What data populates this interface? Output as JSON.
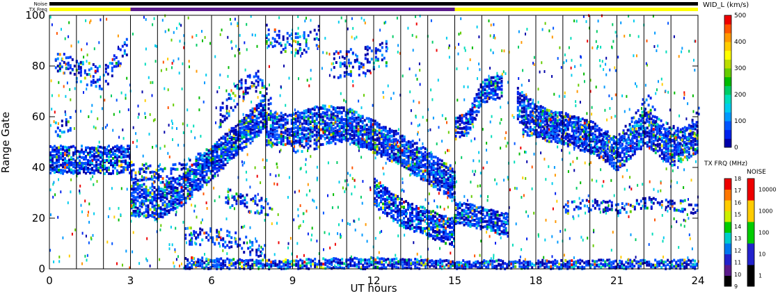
{
  "chart_data": {
    "type": "heatmap",
    "title": "",
    "xlabel": "UT hours",
    "ylabel": "Range Gate",
    "xlim": [
      0,
      24
    ],
    "ylim": [
      0,
      100
    ],
    "x_ticks": [
      "0",
      "3",
      "6",
      "9",
      "12",
      "15",
      "18",
      "21",
      "24"
    ],
    "y_ticks": [
      "0",
      "20",
      "40",
      "60",
      "80",
      "100"
    ],
    "vertical_hour_lines": [
      1,
      2,
      3,
      4,
      5,
      6,
      7,
      8,
      9,
      10,
      11,
      12,
      13,
      14,
      15,
      16,
      17,
      18,
      19,
      20,
      21,
      22,
      23
    ],
    "status_bars": {
      "noise_label": "Noise",
      "txfreq_label": "TX Freq",
      "noise_color": "#000000",
      "txfreq_segments": [
        {
          "start": 0,
          "end": 3,
          "color": "#ffff00"
        },
        {
          "start": 3,
          "end": 15,
          "color": "#5a1a8a"
        },
        {
          "start": 15,
          "end": 24,
          "color": "#ffff00"
        }
      ]
    },
    "bands": [
      {
        "x": [
          0,
          3
        ],
        "y0": [
          43,
          43
        ],
        "width": 5
      },
      {
        "x": [
          0.2,
          1,
          2,
          2.9
        ],
        "y0": [
          82,
          78,
          75,
          90
        ],
        "width": 4,
        "sparse": true
      },
      {
        "x": [
          0.2,
          0.8
        ],
        "y0": [
          55,
          57
        ],
        "width": 3,
        "sparse": true
      },
      {
        "x": [
          3,
          4,
          5,
          6,
          7,
          8
        ],
        "y0": [
          27,
          26,
          32,
          42,
          52,
          62
        ],
        "width": 6
      },
      {
        "x": [
          3,
          4,
          5,
          6,
          7,
          8
        ],
        "y0": [
          38,
          36,
          38,
          44,
          50,
          60
        ],
        "width": 4,
        "sparse": true
      },
      {
        "x": [
          6.3,
          7,
          7.7,
          8.2
        ],
        "y0": [
          60,
          70,
          75,
          62
        ],
        "width": 4,
        "sparse": true
      },
      {
        "x": [
          6.5,
          8.2
        ],
        "y0": [
          28,
          24
        ],
        "width": 3,
        "sparse": true
      },
      {
        "x": [
          8,
          9,
          10,
          11,
          12,
          13,
          14,
          15
        ],
        "y0": [
          55,
          55,
          58,
          57,
          52,
          47,
          40,
          33
        ],
        "width": 6
      },
      {
        "x": [
          9,
          10,
          11,
          12,
          13,
          14,
          15
        ],
        "y0": [
          50,
          52,
          55,
          50,
          45,
          38,
          30
        ],
        "width": 4,
        "sparse": true
      },
      {
        "x": [
          12,
          13,
          14,
          15
        ],
        "y0": [
          30,
          22,
          18,
          14
        ],
        "width": 5
      },
      {
        "x": [
          8,
          9,
          10
        ],
        "y0": [
          92,
          88,
          92
        ],
        "width": 4,
        "sparse": true
      },
      {
        "x": [
          10.5,
          11.5,
          12.5
        ],
        "y0": [
          80,
          82,
          85
        ],
        "width": 5,
        "sparse": true
      },
      {
        "x": [
          15,
          15.5,
          16,
          16.7
        ],
        "y0": [
          55,
          58,
          70,
          72
        ],
        "width": 4
      },
      {
        "x": [
          15,
          16,
          17
        ],
        "y0": [
          22,
          20,
          17
        ],
        "width": 4
      },
      {
        "x": [
          17.3,
          18,
          19,
          20,
          21,
          22,
          23,
          24
        ],
        "y0": [
          65,
          58,
          55,
          52,
          45,
          55,
          47,
          52
        ],
        "width": 6
      },
      {
        "x": [
          17.5,
          19,
          20,
          21,
          22.2,
          22.5,
          23.5,
          24
        ],
        "y0": [
          57,
          56,
          50,
          48,
          65,
          55,
          50,
          60
        ],
        "width": 4,
        "sparse": true
      },
      {
        "x": [
          5,
          6.5,
          8
        ],
        "y0": [
          13,
          12,
          7
        ],
        "width": 3,
        "sparse": true
      },
      {
        "x": [
          5,
          8,
          12,
          15,
          18,
          21,
          24
        ],
        "y0": [
          2,
          1,
          2,
          1,
          1,
          1,
          1
        ],
        "width": 2
      },
      {
        "x": [
          19,
          20,
          21,
          22,
          23,
          24
        ],
        "y0": [
          24,
          25,
          24,
          26,
          25,
          24
        ],
        "width": 2,
        "sparse": true
      }
    ],
    "colorbar_width": {
      "label": "WID_L (km/s)",
      "ticks": [
        "0",
        "100",
        "200",
        "300",
        "400",
        "500"
      ],
      "colors": [
        "#0000aa",
        "#0022ee",
        "#0055ff",
        "#0099ff",
        "#00ccee",
        "#00ddbb",
        "#00cc66",
        "#00bb00",
        "#66cc00",
        "#bbdd00",
        "#ffff00",
        "#ffcc00",
        "#ff9900",
        "#ff5500",
        "#ee0000"
      ]
    },
    "colorbar_txfreq": {
      "label": "TX FRQ (MHz)",
      "ticks": [
        "9",
        "10",
        "11",
        "12",
        "13",
        "14",
        "15",
        "16",
        "17",
        "18"
      ],
      "colors": [
        "#000000",
        "#5a1a8a",
        "#2222cc",
        "#0077ee",
        "#00cccc",
        "#00cc00",
        "#ccee00",
        "#ffcc00",
        "#ff7700",
        "#ee0000"
      ]
    },
    "colorbar_noise": {
      "label": "NOISE",
      "ticks": [
        "1",
        "10",
        "100",
        "1000",
        "10000"
      ],
      "colors": [
        "#000000",
        "#2222cc",
        "#00cc00",
        "#ffcc00",
        "#ee0000"
      ]
    }
  }
}
